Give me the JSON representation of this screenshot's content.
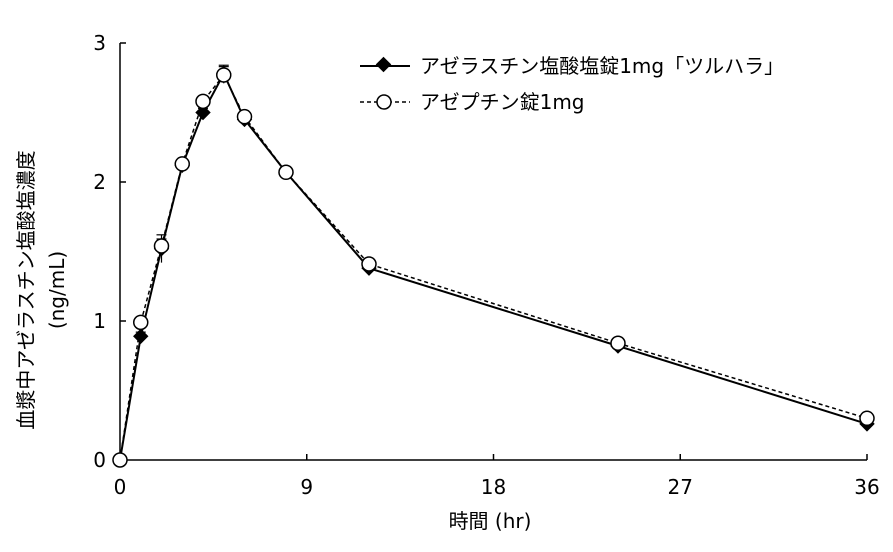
{
  "chart_data": {
    "type": "line",
    "xlabel": "時間 (hr)",
    "ylabel": "血漿中アゼラスチン塩酸塩濃度",
    "ylabel_unit": "(ng/mL)",
    "xlim": [
      0,
      36
    ],
    "ylim": [
      0,
      3
    ],
    "xticks": [
      0,
      9,
      18,
      27,
      36
    ],
    "yticks": [
      0,
      1,
      2,
      3
    ],
    "legend_position": "top-right",
    "grid": false,
    "series": [
      {
        "name": "アゼラスチン塩酸塩錠1mg「ツルハラ」",
        "marker": "filled-diamond",
        "line_style": "solid",
        "color": "#000000",
        "x": [
          0,
          1,
          2,
          3,
          4,
          5,
          6,
          8,
          12,
          24,
          36
        ],
        "y": [
          0,
          0.89,
          1.52,
          2.12,
          2.5,
          2.78,
          2.45,
          2.07,
          1.38,
          0.82,
          0.26
        ],
        "err": [
          0,
          0.03,
          0.1,
          0.04,
          0.03,
          0.06,
          0.03,
          0.02,
          0.02,
          0.02,
          0.01
        ]
      },
      {
        "name": "アゼプチン錠1mg",
        "marker": "open-circle",
        "line_style": "dashed",
        "color": "#000000",
        "x": [
          0,
          1,
          2,
          3,
          4,
          5,
          6,
          8,
          12,
          24,
          36
        ],
        "y": [
          0,
          0.99,
          1.54,
          2.13,
          2.58,
          2.77,
          2.47,
          2.07,
          1.41,
          0.84,
          0.3
        ],
        "err": [
          0,
          0.03,
          0.05,
          0.03,
          0.03,
          0.06,
          0.03,
          0.02,
          0.02,
          0.02,
          0.01
        ]
      }
    ]
  }
}
